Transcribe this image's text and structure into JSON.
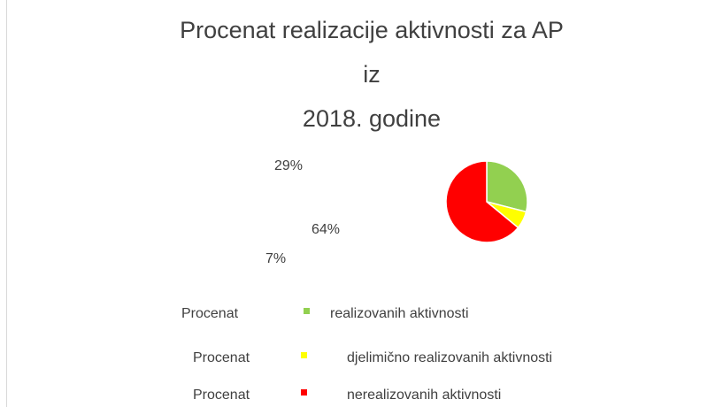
{
  "chart_data": {
    "type": "pie",
    "title": [
      "Procenat realizacije aktivnosti za AP",
      "iz",
      "2018. godine"
    ],
    "categories": [
      [
        "Procenat",
        "realizovanih aktivnosti"
      ],
      [
        "Procenat",
        "djelimično realizovanih aktivnosti"
      ],
      [
        "Procenat",
        "nerealizovanih aktivnosti"
      ]
    ],
    "values": [
      29,
      7,
      64
    ],
    "value_labels": [
      "29%",
      "7%",
      "64%"
    ],
    "colors": [
      "#92d050",
      "#ffff00",
      "#ff0000"
    ]
  }
}
